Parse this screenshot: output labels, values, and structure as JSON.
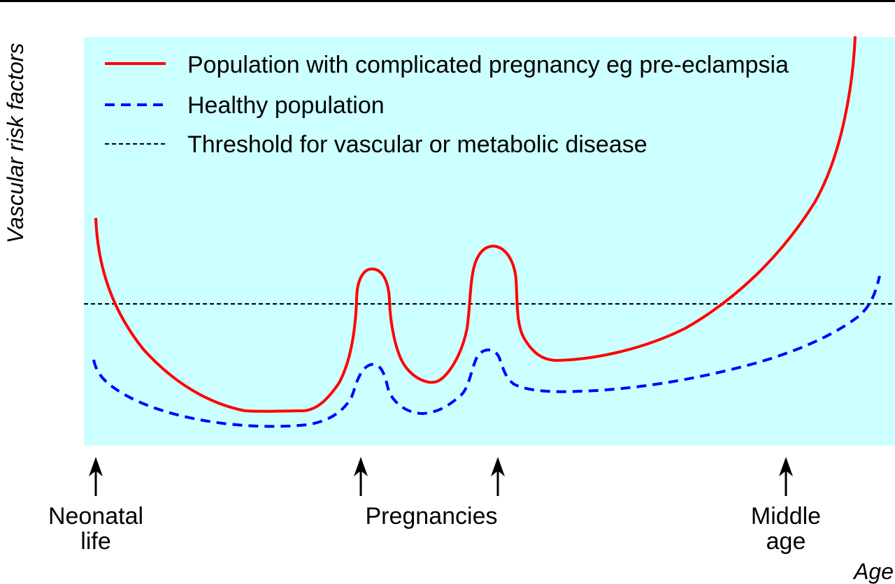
{
  "chart_data": {
    "type": "line",
    "title": "",
    "xlabel": "Age",
    "ylabel": "Vascular risk factors",
    "background_color": "#ccffff",
    "grid": false,
    "legend_position": "top-left",
    "series": [
      {
        "name": "Population with complicated pregnancy eg pre-eclampsia",
        "color": "#ff0000",
        "style": "solid"
      },
      {
        "name": "Healthy population",
        "color": "#0000ff",
        "style": "dashed"
      },
      {
        "name": "Threshold for vascular or metabolic disease",
        "color": "#000000",
        "style": "dotted"
      }
    ],
    "annotations": [
      {
        "id": "neonatal",
        "lines": [
          "Neonatal",
          "life"
        ]
      },
      {
        "id": "pregnancy-1",
        "lines": []
      },
      {
        "id": "pregnancy-2",
        "lines": []
      },
      {
        "id": "pregnancies",
        "lines": [
          "Pregnancies"
        ]
      },
      {
        "id": "middle-age",
        "lines": [
          "Middle",
          "age"
        ]
      }
    ]
  }
}
